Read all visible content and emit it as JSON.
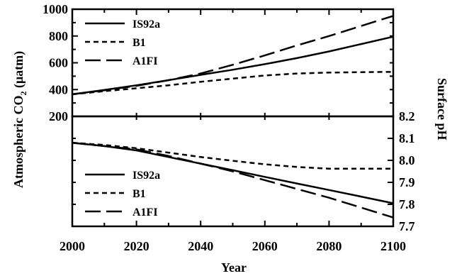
{
  "chart_data": [
    {
      "type": "line",
      "panel": "top",
      "ylabel_main": "Atmospheric CO",
      "ylabel_sub": "2",
      "ylabel_unit": " (μatm)",
      "xlim": [
        2000,
        2100
      ],
      "ylim": [
        200,
        1000
      ],
      "yticks_labeled": [
        200,
        400,
        600,
        800,
        1000
      ],
      "yticks_minor": [
        300,
        500,
        700,
        900
      ],
      "legend_position": "top-left",
      "series": [
        {
          "name": "IS92a",
          "dash": "solid",
          "x": [
            2000,
            2010,
            2020,
            2030,
            2040,
            2050,
            2060,
            2070,
            2080,
            2090,
            2100
          ],
          "y": [
            365,
            397,
            432,
            470,
            510,
            548,
            590,
            635,
            685,
            740,
            795
          ]
        },
        {
          "name": "B1",
          "dash": "short",
          "x": [
            2000,
            2010,
            2020,
            2030,
            2040,
            2050,
            2060,
            2070,
            2080,
            2090,
            2100
          ],
          "y": [
            365,
            388,
            410,
            432,
            458,
            482,
            505,
            520,
            527,
            530,
            532
          ]
        },
        {
          "name": "A1FI",
          "dash": "long",
          "x": [
            2000,
            2010,
            2020,
            2030,
            2040,
            2050,
            2060,
            2070,
            2080,
            2090,
            2100
          ],
          "y": [
            365,
            395,
            428,
            470,
            520,
            585,
            655,
            730,
            800,
            875,
            950
          ]
        }
      ]
    },
    {
      "type": "line",
      "panel": "bottom",
      "xlabel": "Year",
      "ylabel": "Surface pH",
      "xlim": [
        2000,
        2100
      ],
      "ylim": [
        7.7,
        8.2
      ],
      "xticks": [
        2000,
        2020,
        2040,
        2060,
        2080,
        2100
      ],
      "yticks": [
        7.7,
        7.8,
        7.9,
        8.0,
        8.1,
        8.2
      ],
      "ytick_labels": [
        "7.7",
        "7.8",
        "7.9",
        "8.0",
        "8.1",
        "8.2"
      ],
      "legend_position": "bottom-left",
      "series": [
        {
          "name": "IS92a",
          "dash": "solid",
          "x": [
            2000,
            2010,
            2020,
            2030,
            2040,
            2050,
            2060,
            2070,
            2080,
            2090,
            2100
          ],
          "y": [
            8.08,
            8.065,
            8.045,
            8.015,
            7.985,
            7.955,
            7.925,
            7.895,
            7.865,
            7.835,
            7.805
          ]
        },
        {
          "name": "B1",
          "dash": "short",
          "x": [
            2000,
            2010,
            2020,
            2030,
            2040,
            2050,
            2060,
            2070,
            2080,
            2090,
            2100
          ],
          "y": [
            8.08,
            8.07,
            8.055,
            8.035,
            8.015,
            7.998,
            7.982,
            7.97,
            7.962,
            7.962,
            7.962
          ]
        },
        {
          "name": "A1FI",
          "dash": "long",
          "x": [
            2000,
            2010,
            2020,
            2030,
            2040,
            2050,
            2060,
            2070,
            2080,
            2090,
            2100
          ],
          "y": [
            8.08,
            8.065,
            8.05,
            8.02,
            7.985,
            7.95,
            7.91,
            7.87,
            7.83,
            7.785,
            7.74
          ]
        }
      ]
    }
  ]
}
